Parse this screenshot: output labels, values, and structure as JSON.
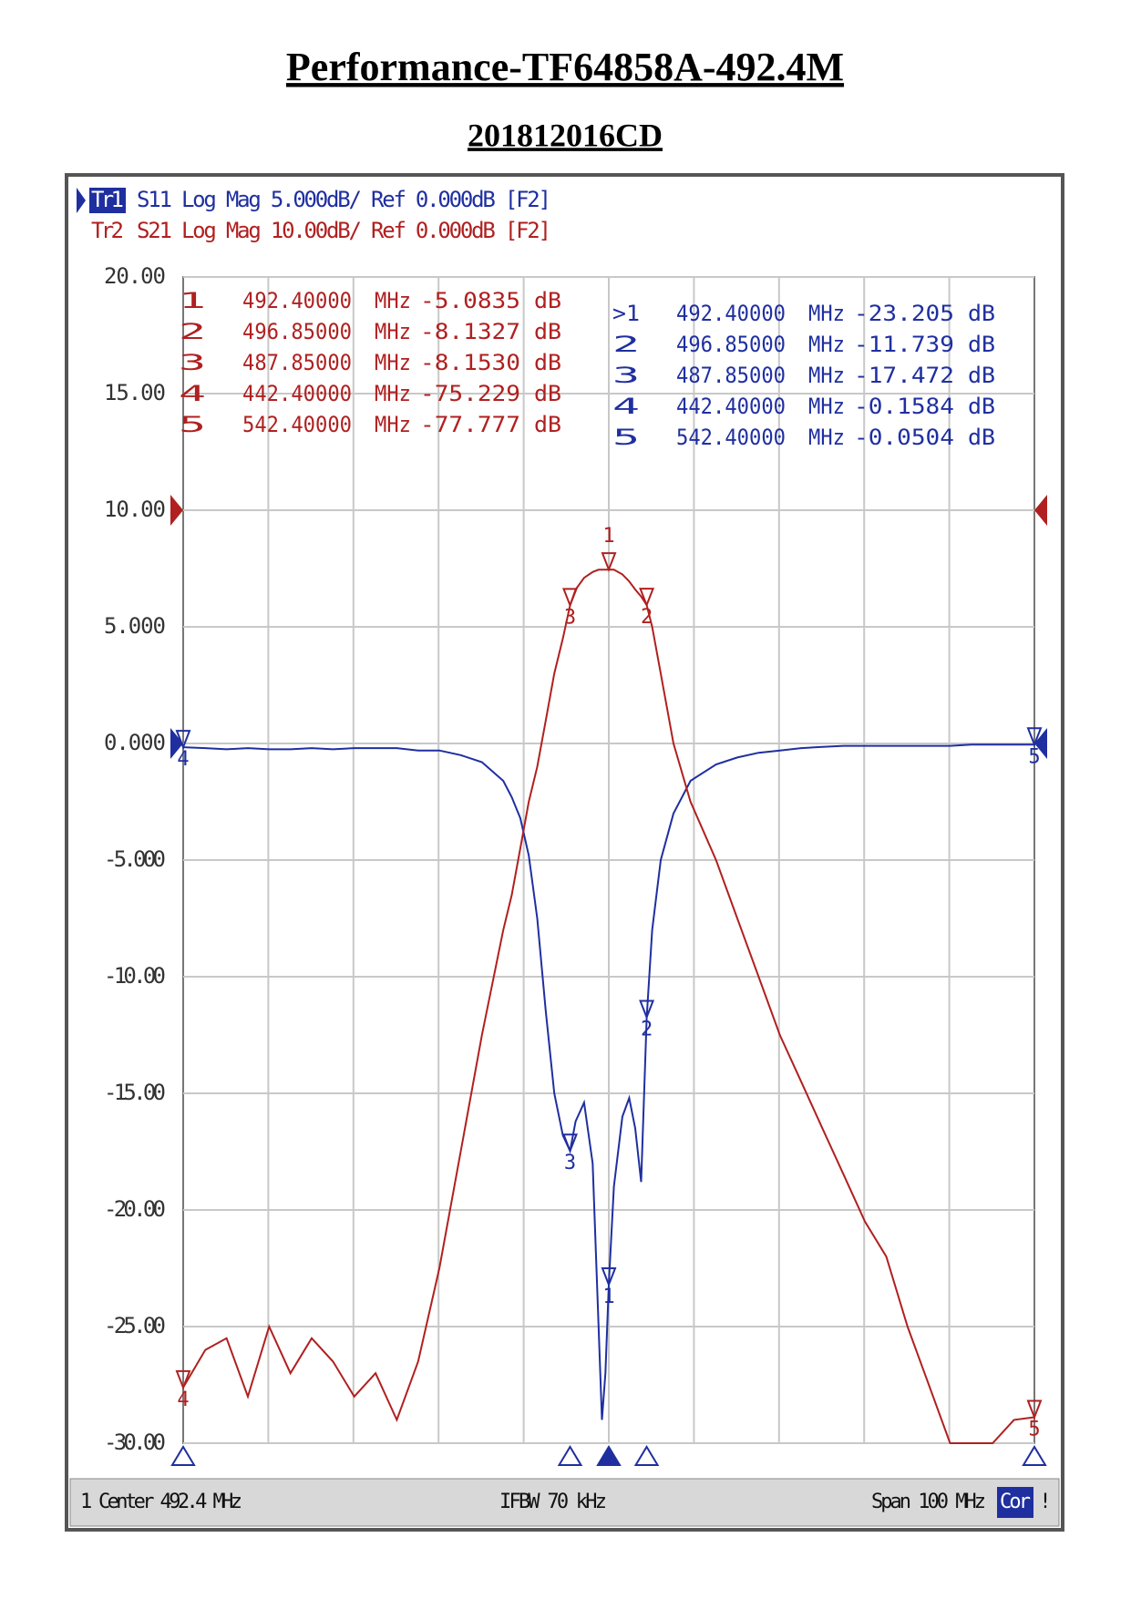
{
  "chart_data": {
    "type": "line",
    "title": "Performance-TF64858A-492.4M",
    "subtitle": "201812016CD",
    "trace_headers": [
      {
        "name": "Tr1",
        "text": "S11 Log Mag 5.000dB/ Ref 0.000dB [F2]"
      },
      {
        "name": "Tr2",
        "text": "S21 Log Mag 10.00dB/ Ref 0.000dB [F2]"
      }
    ],
    "xlim": [
      442.4,
      542.4
    ],
    "ylim": [
      -30,
      20
    ],
    "y2lim": [
      -80,
      20
    ],
    "yticks": [
      {
        "value": 20,
        "label": "20.00"
      },
      {
        "value": 15,
        "label": "15.00"
      },
      {
        "value": 10,
        "label": "10.00"
      },
      {
        "value": 5,
        "label": "5.000"
      },
      {
        "value": 0,
        "label": "0.000"
      },
      {
        "value": -5,
        "label": "-5.000"
      },
      {
        "value": -10,
        "label": "-10.00"
      },
      {
        "value": -15,
        "label": "-15.00"
      },
      {
        "value": -20,
        "label": "-20.00"
      },
      {
        "value": -25,
        "label": "-25.00"
      },
      {
        "value": -30,
        "label": "-30.00"
      }
    ],
    "grid": true,
    "x": [
      442.4,
      445,
      447.5,
      450,
      452.5,
      455,
      457.5,
      460,
      462.5,
      465,
      467.5,
      470,
      472.5,
      475,
      477.5,
      480,
      481,
      482,
      483,
      484,
      485,
      486,
      487,
      487.85,
      488.5,
      489.5,
      490.5,
      491.2,
      491.6,
      492,
      492.4,
      493,
      494,
      494.8,
      495.5,
      496.2,
      496.85,
      497.5,
      498.5,
      500,
      502,
      505,
      507.5,
      510,
      512.5,
      515,
      517.5,
      520,
      522.5,
      525,
      527.5,
      530,
      532.5,
      535,
      537.5,
      540,
      542.4
    ],
    "series": [
      {
        "name": "S11",
        "color": "#1f2fa0",
        "reference_level": 0,
        "values": [
          -0.16,
          -0.2,
          -0.25,
          -0.2,
          -0.25,
          -0.25,
          -0.2,
          -0.25,
          -0.2,
          -0.2,
          -0.2,
          -0.3,
          -0.3,
          -0.5,
          -0.8,
          -1.6,
          -2.3,
          -3.2,
          -4.8,
          -7.5,
          -11.5,
          -15,
          -16.8,
          -17.47,
          -16.2,
          -15.4,
          -18,
          -25,
          -29,
          -27,
          -23.205,
          -19,
          -16,
          -15.2,
          -16.5,
          -18.8,
          -11.739,
          -8,
          -5,
          -3,
          -1.6,
          -0.9,
          -0.6,
          -0.4,
          -0.3,
          -0.2,
          -0.15,
          -0.1,
          -0.1,
          -0.1,
          -0.1,
          -0.1,
          -0.1,
          -0.05,
          -0.05,
          -0.05,
          -0.0504
        ]
      },
      {
        "name": "S21",
        "color": "#b02020",
        "axis": "y2",
        "reference_level": 0,
        "values": [
          -75.229,
          -72,
          -71,
          -76,
          -70,
          -74,
          -71,
          -73,
          -76,
          -74,
          -78,
          -73,
          -65,
          -55,
          -45,
          -36,
          -33,
          -29,
          -25,
          -22,
          -18,
          -14,
          -11,
          -8.153,
          -6.8,
          -5.8,
          -5.3,
          -5.1,
          -5.1,
          -5.1,
          -5.0835,
          -5.1,
          -5.5,
          -6.1,
          -6.8,
          -7.4,
          -8.1327,
          -10,
          -14,
          -20,
          -25,
          -30,
          -35,
          -40,
          -45,
          -49,
          -53,
          -57,
          -61,
          -64,
          -70,
          -75,
          -80,
          -80,
          -80,
          -78,
          -77.777
        ]
      }
    ],
    "markers": {
      "labels": [
        "1",
        "2",
        "3",
        "4",
        "5"
      ],
      "x": [
        492.4,
        496.85,
        487.85,
        442.4,
        542.4
      ],
      "active": 0
    },
    "marker_tables": [
      {
        "series": 1,
        "rows": [
          [
            "1",
            "492.40000",
            "MHz",
            "-5.0835",
            "dB"
          ],
          [
            "2",
            "496.85000",
            "MHz",
            "-8.1327",
            "dB"
          ],
          [
            "3",
            "487.85000",
            "MHz",
            "-8.1530",
            "dB"
          ],
          [
            "4",
            "442.40000",
            "MHz",
            "-75.229",
            "dB"
          ],
          [
            "5",
            "542.40000",
            "MHz",
            "-77.777",
            "dB"
          ]
        ]
      },
      {
        "series": 0,
        "rows": [
          [
            ">1",
            "492.40000",
            "MHz",
            "-23.205",
            "dB"
          ],
          [
            "2",
            "496.85000",
            "MHz",
            "-11.739",
            "dB"
          ],
          [
            "3",
            "487.85000",
            "MHz",
            "-17.472",
            "dB"
          ],
          [
            "4",
            "442.40000",
            "MHz",
            "-0.1584",
            "dB"
          ],
          [
            "5",
            "542.40000",
            "MHz",
            "-0.0504",
            "dB"
          ]
        ]
      }
    ],
    "status_bar": {
      "channel": "1",
      "center": "Center 492.4 MHz",
      "ifbw": "IFBW 70 kHz",
      "span": "Span 100 MHz",
      "correction": "Cor",
      "flag": "!"
    }
  }
}
